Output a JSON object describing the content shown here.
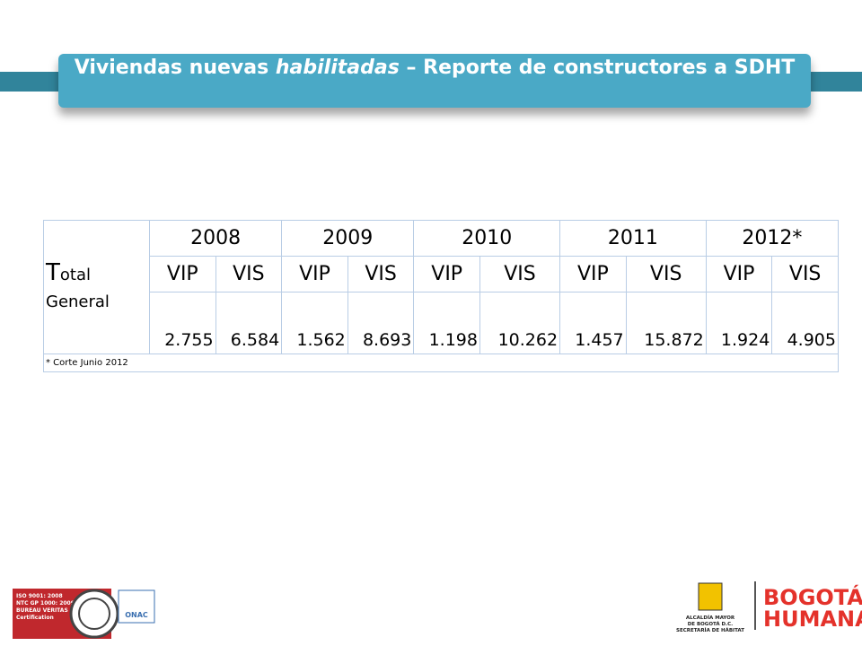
{
  "header": {
    "title_before": "Viviendas nuevas ",
    "title_emphasis": "habilitadas",
    "title_after": " – Reporte de constructores  a SDHT"
  },
  "table": {
    "row_label": "Total General",
    "years": [
      "2008",
      "2009",
      "2010",
      "2011",
      "2012*"
    ],
    "subheaders": [
      "VIP",
      "VIS",
      "VIP",
      "VIS",
      "VIP",
      "VIS",
      "VIP",
      "VIS",
      "VIP",
      "VIS"
    ],
    "values": [
      "2.755",
      "6.584",
      "1.562",
      "8.693",
      "1.198",
      "10.262",
      "1.457",
      "15.872",
      "1.924",
      "4.905"
    ],
    "footnote": "* Corte Junio 2012"
  },
  "footer": {
    "cert_lines": [
      "ISO 9001: 2008",
      "NTC GP 1000: 2009",
      "BUREAU VERITAS",
      "Certification"
    ],
    "onac": "ONAC",
    "alcaldia": [
      "ALCALDÍA MAYOR",
      "DE BOGOTÁ D.C.",
      "SECRETARÍA DE HÁBITAT"
    ],
    "brand": [
      "BOGOTÁ",
      "HUMANA"
    ]
  }
}
